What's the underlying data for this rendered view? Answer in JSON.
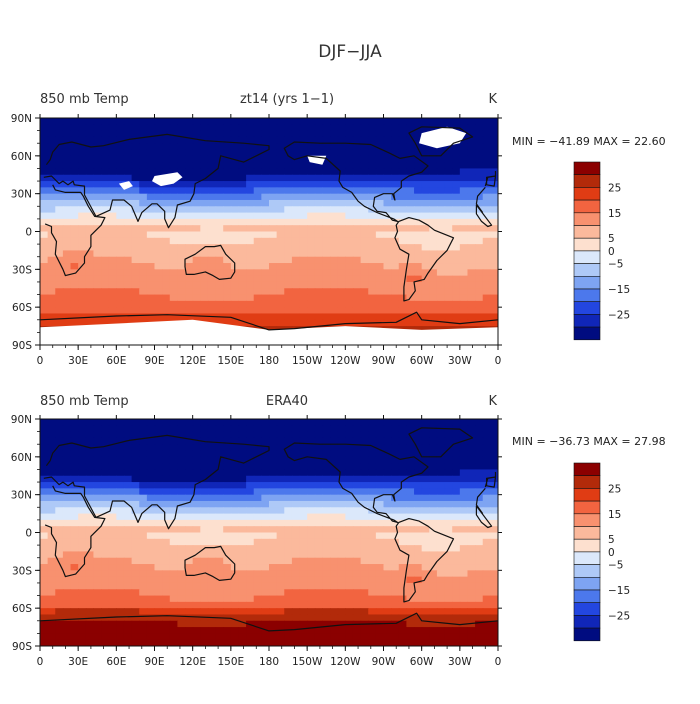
{
  "figure_title": "DJF−JJA",
  "chart_data": [
    {
      "type": "heatmap",
      "left_title": "850 mb Temp",
      "center_title": "zt14 (yrs 1−1)",
      "units": "K",
      "stats_text": "MIN = −41.89 MAX =  22.60",
      "min": -41.89,
      "max": 22.6,
      "x_ticks": [
        "0",
        "30E",
        "60E",
        "90E",
        "120E",
        "150E",
        "180",
        "150W",
        "120W",
        "90W",
        "60W",
        "30W",
        "0"
      ],
      "y_ticks": [
        "90N",
        "60N",
        "30N",
        "0",
        "30S",
        "60S",
        "90S"
      ],
      "xlim": [
        0,
        360
      ],
      "ylim": [
        -90,
        90
      ],
      "has_missing": true,
      "colorbar": {
        "levels": [
          -30,
          -25,
          -20,
          -15,
          -10,
          -5,
          0,
          5,
          10,
          15,
          20,
          25,
          30
        ],
        "labels": [
          "25",
          "15",
          "5",
          "0",
          "−5",
          "−15",
          "−25"
        ],
        "colors": [
          "#8b0000",
          "#b22a0a",
          "#e03c14",
          "#f26440",
          "#f8916f",
          "#fbb99c",
          "#fde0cf",
          "#dbe8fb",
          "#aec9f7",
          "#7ea4f2",
          "#4c78ec",
          "#2346e0",
          "#1026b8",
          "#000c80"
        ]
      }
    },
    {
      "type": "heatmap",
      "left_title": "850 mb Temp",
      "center_title": "ERA40",
      "units": "K",
      "stats_text": "MIN = −36.73 MAX =  27.98",
      "min": -36.73,
      "max": 27.98,
      "x_ticks": [
        "0",
        "30E",
        "60E",
        "90E",
        "120E",
        "150E",
        "180",
        "150W",
        "120W",
        "90W",
        "60W",
        "30W",
        "0"
      ],
      "y_ticks": [
        "90N",
        "60N",
        "30N",
        "0",
        "30S",
        "60S",
        "90S"
      ],
      "xlim": [
        0,
        360
      ],
      "ylim": [
        -90,
        90
      ],
      "has_missing": false,
      "colorbar": {
        "levels": [
          -30,
          -25,
          -20,
          -15,
          -10,
          -5,
          0,
          5,
          10,
          15,
          20,
          25,
          30
        ],
        "labels": [
          "25",
          "15",
          "5",
          "0",
          "−5",
          "−15",
          "−25"
        ],
        "colors": [
          "#8b0000",
          "#b22a0a",
          "#e03c14",
          "#f26440",
          "#f8916f",
          "#fbb99c",
          "#fde0cf",
          "#dbe8fb",
          "#aec9f7",
          "#7ea4f2",
          "#4c78ec",
          "#2346e0",
          "#1026b8",
          "#000c80"
        ]
      }
    }
  ]
}
